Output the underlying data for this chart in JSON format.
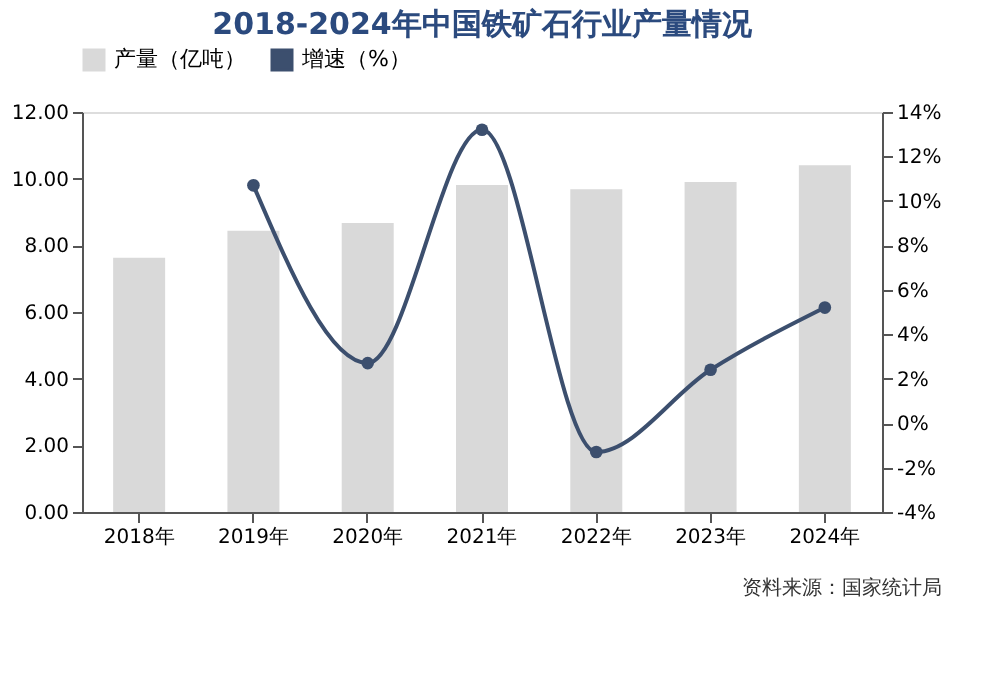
{
  "chart_data": {
    "type": "bar",
    "title": "2018-2024年中国铁矿石行业产量情况",
    "categories": [
      "2018年",
      "2019年",
      "2020年",
      "2021年",
      "2022年",
      "2023年",
      "2024年"
    ],
    "series": [
      {
        "name": "产量（亿吨）",
        "color": "#d9d9d9",
        "values": [
          7.63,
          8.44,
          8.67,
          9.81,
          9.68,
          9.9,
          10.4
        ]
      },
      {
        "name": "增速（%）",
        "type": "line",
        "axis": "y2",
        "color": "#3c4f6e",
        "marker": "circle",
        "values": [
          null,
          10.7,
          2.7,
          13.2,
          -1.3,
          2.4,
          5.2
        ]
      }
    ],
    "ylim": [
      0,
      12
    ],
    "yticks": [
      {
        "value": 0,
        "label": "0.00"
      },
      {
        "value": 2,
        "label": "2.00"
      },
      {
        "value": 4,
        "label": "4.00"
      },
      {
        "value": 6,
        "label": "6.00"
      },
      {
        "value": 8,
        "label": "8.00"
      },
      {
        "value": 10,
        "label": "10.00"
      },
      {
        "value": 12,
        "label": "12.00"
      }
    ],
    "y2lim": [
      -4,
      14
    ],
    "y2ticks": [
      {
        "value": -4,
        "label": "-4%"
      },
      {
        "value": -2,
        "label": "-2%"
      },
      {
        "value": 0,
        "label": "0%"
      },
      {
        "value": 2,
        "label": "2%"
      },
      {
        "value": 4,
        "label": "4%"
      },
      {
        "value": 6,
        "label": "6%"
      },
      {
        "value": 8,
        "label": "8%"
      },
      {
        "value": 10,
        "label": "10%"
      },
      {
        "value": 12,
        "label": "12%"
      },
      {
        "value": 14,
        "label": "14%"
      }
    ],
    "legend": "top",
    "grid": false,
    "annotations": [
      "资料来源：国家统计局"
    ]
  }
}
